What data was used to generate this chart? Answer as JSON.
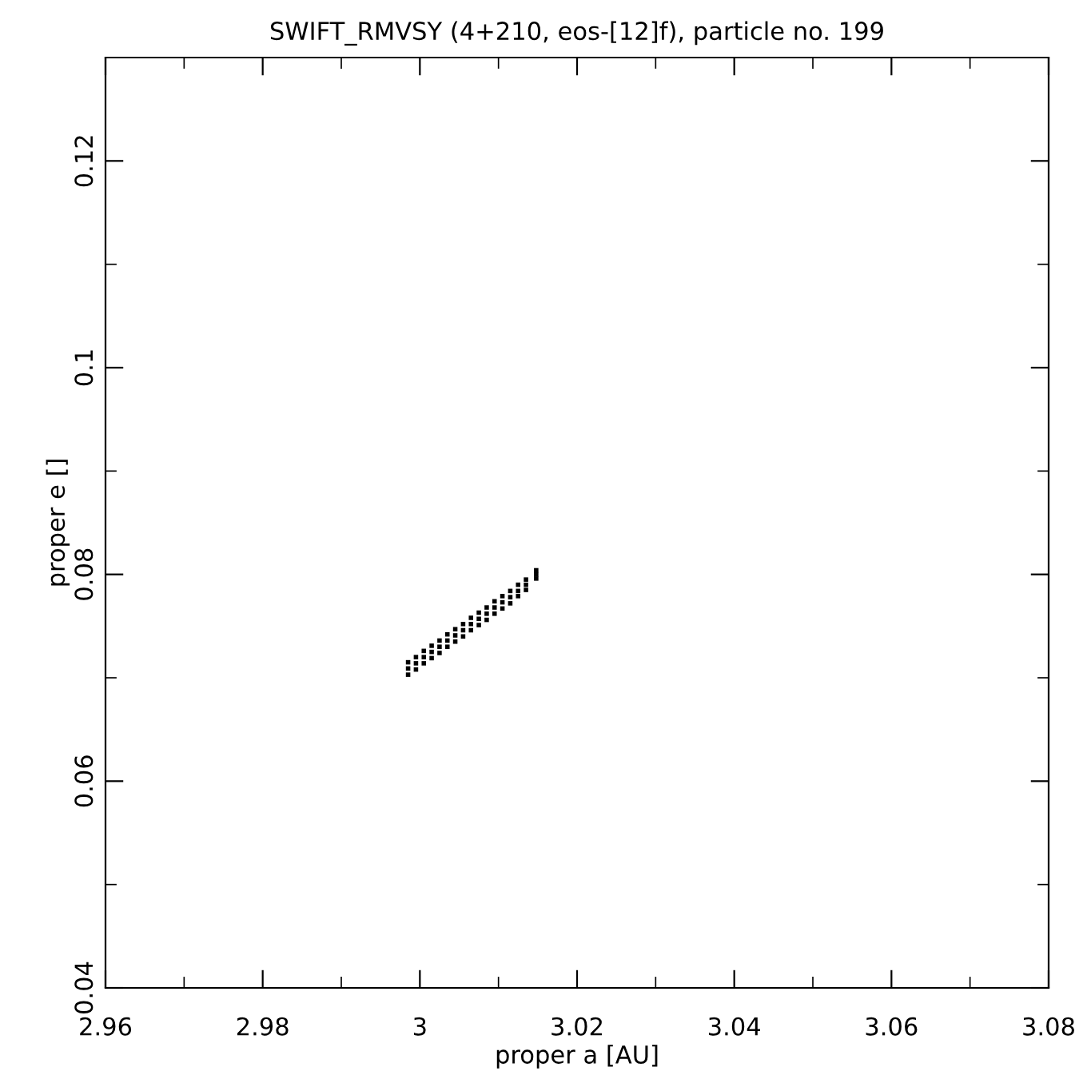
{
  "chart_data": {
    "type": "scatter",
    "title": "SWIFT_RMVSY (4+210, eos-[12]f), particle no. 199",
    "xlabel": "proper a [AU]",
    "ylabel": "proper e []",
    "xlim": [
      2.96,
      3.08
    ],
    "xticks": [
      2.96,
      2.98,
      3,
      3.02,
      3.04,
      3.06,
      3.08
    ],
    "ylim": [
      0.04,
      0.13
    ],
    "yticks": [
      0.04,
      0.06,
      0.08,
      0.1,
      0.12
    ],
    "grid": false,
    "marker": "square",
    "series": [
      {
        "color": "#000000",
        "x": [
          2.9985,
          2.9995,
          3.0005,
          3.0015,
          3.0025,
          3.0035,
          3.0045,
          3.0055,
          3.0065,
          3.0075,
          3.0085,
          3.0095,
          3.0105,
          3.0115,
          3.0125,
          3.0135,
          3.0148
        ],
        "values": [
          0.0715,
          0.072,
          0.0726,
          0.0731,
          0.0736,
          0.0742,
          0.0747,
          0.0752,
          0.0758,
          0.0763,
          0.0768,
          0.0774,
          0.0779,
          0.0784,
          0.079,
          0.0795,
          0.0804
        ]
      },
      {
        "color": "#000000",
        "x": [
          2.9985,
          2.9995,
          3.0005,
          3.0015,
          3.0025,
          3.0035,
          3.0045,
          3.0055,
          3.0065,
          3.0075,
          3.0085,
          3.0095,
          3.0105,
          3.0115,
          3.0125,
          3.0135,
          3.0148
        ],
        "values": [
          0.0709,
          0.0714,
          0.072,
          0.0725,
          0.073,
          0.0736,
          0.0741,
          0.0746,
          0.0752,
          0.0757,
          0.0762,
          0.0768,
          0.0773,
          0.0778,
          0.0784,
          0.079,
          0.08
        ]
      },
      {
        "color": "#000000",
        "x": [
          2.9985,
          2.9995,
          3.0005,
          3.0015,
          3.0025,
          3.0035,
          3.0045,
          3.0055,
          3.0065,
          3.0075,
          3.0085,
          3.0095,
          3.0105,
          3.0115,
          3.0125,
          3.0135,
          3.0148
        ],
        "values": [
          0.0703,
          0.0708,
          0.0714,
          0.0719,
          0.0724,
          0.073,
          0.0735,
          0.074,
          0.0746,
          0.0751,
          0.0756,
          0.0762,
          0.0767,
          0.0772,
          0.0779,
          0.0785,
          0.0796
        ]
      }
    ]
  }
}
